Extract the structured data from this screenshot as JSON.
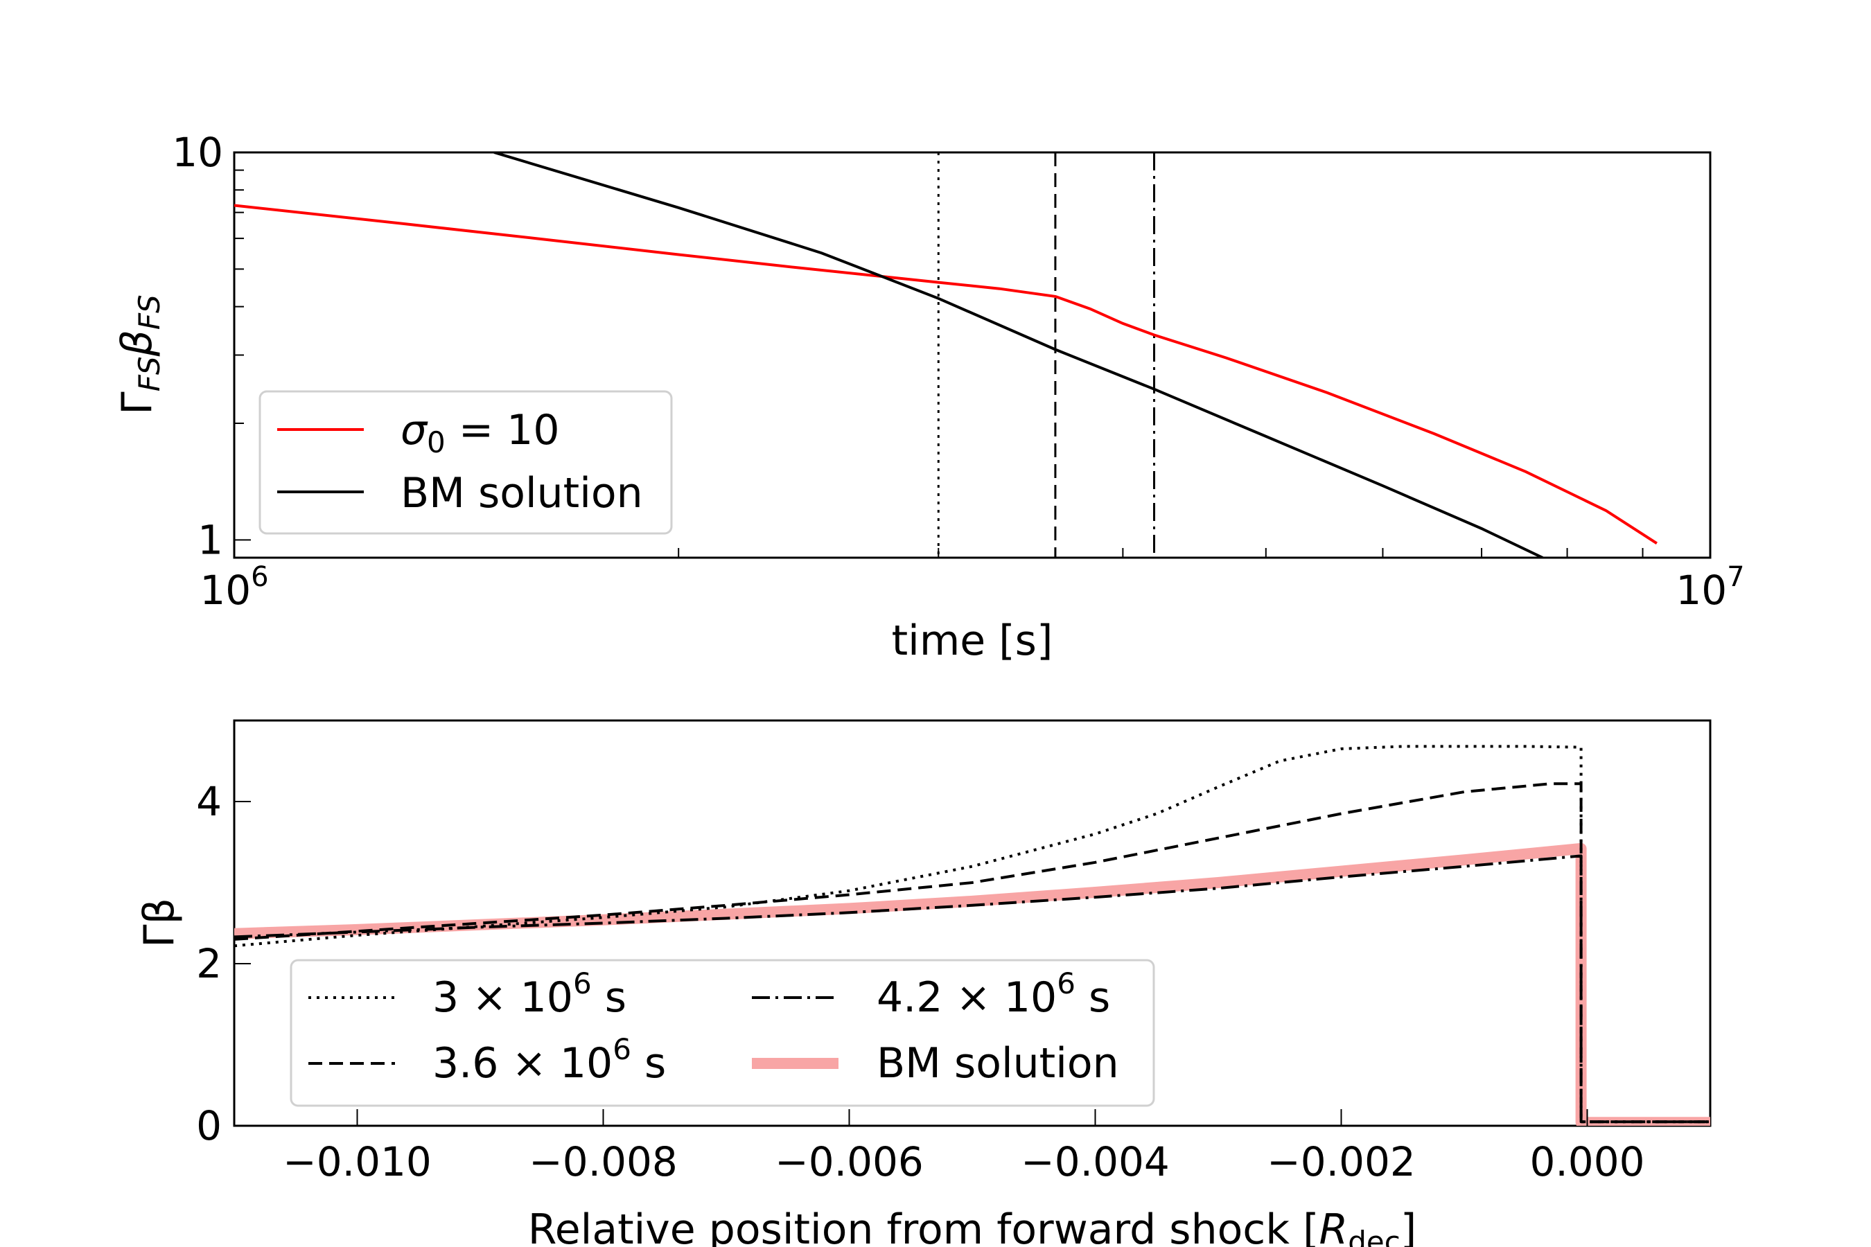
{
  "chart_data": [
    {
      "type": "line",
      "title": "",
      "xlabel": "time [s]",
      "ylabel": "Γ_FS β_FS",
      "xscale": "log",
      "yscale": "log",
      "xlim": [
        1000000,
        10000000
      ],
      "ylim": [
        0.9,
        10
      ],
      "xticklabels": [
        {
          "value": 1000000,
          "base": "10",
          "exp": "6"
        },
        {
          "value": 10000000,
          "base": "10",
          "exp": "7"
        }
      ],
      "yticklabels": [
        {
          "value": 1,
          "label": "1"
        },
        {
          "value": 10,
          "label": "10"
        }
      ],
      "vlines": [
        {
          "x": 3000000,
          "style": "dotted"
        },
        {
          "x": 3600000,
          "style": "dashed"
        },
        {
          "x": 4200000,
          "style": "dashdot"
        }
      ],
      "series": [
        {
          "name": "σ0 = 10",
          "legend_symbol": "σ",
          "legend_sub": "0",
          "legend_rest": " = 10",
          "color": "#ff0000",
          "style": "solid",
          "x": [
            1000000,
            1300000,
            1600000,
            2000000,
            2400000,
            2800000,
            3000000,
            3300000,
            3600000,
            3800000,
            4000000,
            4200000,
            4700000,
            5500000,
            6500000,
            7500000,
            8500000,
            9200000
          ],
          "y": [
            7.3,
            6.55,
            6.0,
            5.45,
            5.05,
            4.75,
            4.62,
            4.45,
            4.25,
            3.95,
            3.62,
            3.38,
            2.95,
            2.4,
            1.88,
            1.5,
            1.19,
            0.98
          ]
        },
        {
          "name": "BM solution",
          "color": "#000000",
          "style": "solid",
          "x": [
            1500000,
            2000000,
            2500000,
            3000000,
            3600000,
            4200000,
            5000000,
            6000000,
            7000000,
            7700000
          ],
          "y": [
            10.0,
            7.2,
            5.5,
            4.2,
            3.1,
            2.45,
            1.85,
            1.38,
            1.07,
            0.9
          ]
        }
      ],
      "legend": {
        "placement": "lower-left"
      }
    },
    {
      "type": "line",
      "title": "",
      "xlabel": "Relative position from forward shock [R_dec]",
      "xlabel_main": "Relative position from forward shock [",
      "xlabel_sym": "R",
      "xlabel_sub": "dec",
      "xlabel_end": "]",
      "ylabel": "Γβ",
      "xlim": [
        -0.011,
        0.001
      ],
      "ylim": [
        0,
        5
      ],
      "xticks": [
        -0.01,
        -0.008,
        -0.006,
        -0.004,
        -0.002,
        0.0
      ],
      "xticklabels": [
        "−0.010",
        "−0.008",
        "−0.006",
        "−0.004",
        "−0.002",
        "0.000"
      ],
      "yticks": [
        0,
        2,
        4
      ],
      "yticklabels": [
        "0",
        "2",
        "4"
      ],
      "series": [
        {
          "name": "3 × 10^6 s",
          "legend_pre": "3 × 10",
          "legend_exp": "6",
          "legend_post": " s",
          "color": "#000000",
          "style": "dotted",
          "x": [
            -0.011,
            -0.01,
            -0.009,
            -0.008,
            -0.007,
            -0.006,
            -0.005,
            -0.004,
            -0.0035,
            -0.003,
            -0.0025,
            -0.002,
            -0.0015,
            -0.001,
            -0.0005,
            -5e-05,
            -5e-05,
            -3e-05,
            0.001
          ],
          "y": [
            2.22,
            2.35,
            2.46,
            2.57,
            2.7,
            2.9,
            3.2,
            3.6,
            3.85,
            4.18,
            4.5,
            4.65,
            4.68,
            4.68,
            4.68,
            4.67,
            0.05,
            0.05,
            0.05
          ]
        },
        {
          "name": "3.6 × 10^6 s",
          "legend_pre": "3.6 × 10",
          "legend_exp": "6",
          "legend_post": " s",
          "color": "#000000",
          "style": "dashed",
          "x": [
            -0.011,
            -0.01,
            -0.009,
            -0.008,
            -0.007,
            -0.006,
            -0.005,
            -0.004,
            -0.003,
            -0.002,
            -0.001,
            -0.0003,
            -5e-05,
            -5e-05,
            -3e-05,
            0.001
          ],
          "y": [
            2.3,
            2.4,
            2.5,
            2.6,
            2.72,
            2.85,
            3.0,
            3.25,
            3.55,
            3.85,
            4.12,
            4.22,
            4.22,
            0.05,
            0.05,
            0.05
          ]
        },
        {
          "name": "4.2 × 10^6 s",
          "legend_pre": "4.2 × 10",
          "legend_exp": "6",
          "legend_post": " s",
          "color": "#000000",
          "style": "dashdot",
          "x": [
            -0.011,
            -0.01,
            -0.009,
            -0.008,
            -0.007,
            -0.006,
            -0.005,
            -0.004,
            -0.003,
            -0.002,
            -0.001,
            -5e-05,
            -5e-05,
            -3e-05,
            0.001
          ],
          "y": [
            2.33,
            2.39,
            2.45,
            2.5,
            2.56,
            2.63,
            2.72,
            2.82,
            2.93,
            3.07,
            3.2,
            3.33,
            0.05,
            0.05,
            0.05
          ]
        },
        {
          "name": "BM solution",
          "color": "#f8a5a5",
          "style": "thick",
          "x": [
            -0.011,
            -0.01,
            -0.009,
            -0.008,
            -0.007,
            -0.006,
            -0.005,
            -0.004,
            -0.003,
            -0.002,
            -0.001,
            -5e-05,
            -5e-05,
            0.001
          ],
          "y": [
            2.37,
            2.42,
            2.48,
            2.54,
            2.61,
            2.68,
            2.77,
            2.88,
            3.0,
            3.14,
            3.28,
            3.42,
            0.04,
            0.04
          ]
        }
      ],
      "legend": {
        "placement": "lower-left",
        "columns": 2
      }
    }
  ]
}
